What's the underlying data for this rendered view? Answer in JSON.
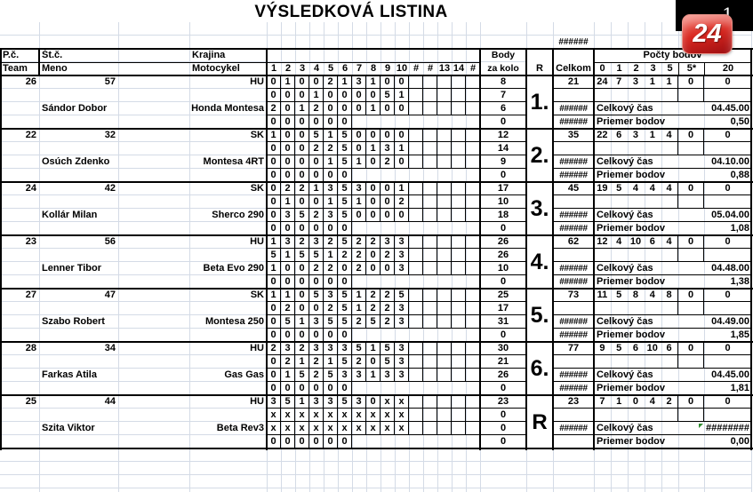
{
  "title": "VÝSLEDKOVÁ LISTINA",
  "page_number": "1",
  "logo_text": "24",
  "top_hash": "######",
  "header": {
    "pc": "P.č.",
    "team": "Team",
    "stc": "Št.č.",
    "meno": "Meno",
    "krajina": "Krajina",
    "motocykel": "Motocykel",
    "score_cols": [
      "1",
      "2",
      "3",
      "4",
      "5",
      "6",
      "7",
      "8",
      "9",
      "10",
      "#",
      "#",
      "13",
      "14",
      "#"
    ],
    "body_line1": "Body",
    "body_line2": "za kolo",
    "r": "R",
    "celkom": "Celkom",
    "pocty": "Počty bodov",
    "pocty_cols": [
      "0",
      "1",
      "2",
      "3",
      "5",
      "5*",
      "20"
    ]
  },
  "labels": {
    "cas": "Celkový čas",
    "priemer": "Priemer bodov"
  },
  "groups": [
    {
      "pc": "26",
      "stc": "57",
      "krajina": "HU",
      "meno": "Sándor Dobor",
      "motocykel": "Honda Montesa",
      "rank": "1.",
      "celkom": "21",
      "rows": [
        {
          "scores": [
            "0",
            "1",
            "0",
            "0",
            "2",
            "1",
            "3",
            "1",
            "0",
            "0"
          ],
          "body": "8"
        },
        {
          "scores": [
            "0",
            "0",
            "0",
            "1",
            "0",
            "0",
            "0",
            "0",
            "5",
            "1"
          ],
          "body": "7"
        },
        {
          "scores": [
            "2",
            "0",
            "1",
            "2",
            "0",
            "0",
            "0",
            "1",
            "0",
            "0"
          ],
          "body": "6"
        },
        {
          "scores": [
            "0",
            "0",
            "0",
            "0",
            "0",
            "0"
          ],
          "body": "0"
        }
      ],
      "hash3": "######",
      "hash4": "######",
      "counts": [
        "24",
        "7",
        "3",
        "1",
        "1"
      ],
      "count_5star": "0",
      "count_20": "0",
      "cas": "04.45.00",
      "cas_flag": false,
      "priemer": "0,50"
    },
    {
      "pc": "22",
      "stc": "32",
      "krajina": "SK",
      "meno": "Osúch Zdenko",
      "motocykel": "Montesa 4RT",
      "rank": "2.",
      "celkom": "35",
      "rows": [
        {
          "scores": [
            "1",
            "0",
            "0",
            "5",
            "1",
            "5",
            "0",
            "0",
            "0",
            "0"
          ],
          "body": "12"
        },
        {
          "scores": [
            "0",
            "0",
            "0",
            "2",
            "2",
            "5",
            "0",
            "1",
            "3",
            "1"
          ],
          "body": "14"
        },
        {
          "scores": [
            "0",
            "0",
            "0",
            "0",
            "1",
            "5",
            "1",
            "0",
            "2",
            "0"
          ],
          "body": "9"
        },
        {
          "scores": [
            "0",
            "0",
            "0",
            "0",
            "0",
            "0"
          ],
          "body": "0"
        }
      ],
      "hash3": "######",
      "hash4": "######",
      "counts": [
        "22",
        "6",
        "3",
        "1",
        "4"
      ],
      "count_5star": "0",
      "count_20": "0",
      "cas": "04.10.00",
      "cas_flag": false,
      "priemer": "0,88"
    },
    {
      "pc": "24",
      "stc": "42",
      "krajina": "SK",
      "meno": "Kollár Milan",
      "motocykel": "Sherco 290",
      "rank": "3.",
      "celkom": "45",
      "rows": [
        {
          "scores": [
            "0",
            "2",
            "2",
            "1",
            "3",
            "5",
            "3",
            "0",
            "0",
            "1"
          ],
          "body": "17"
        },
        {
          "scores": [
            "0",
            "1",
            "0",
            "0",
            "1",
            "5",
            "1",
            "0",
            "0",
            "2"
          ],
          "body": "10"
        },
        {
          "scores": [
            "0",
            "3",
            "5",
            "2",
            "3",
            "5",
            "0",
            "0",
            "0",
            "0"
          ],
          "body": "18"
        },
        {
          "scores": [
            "0",
            "0",
            "0",
            "0",
            "0",
            "0"
          ],
          "body": "0"
        }
      ],
      "hash3": "######",
      "hash4": "######",
      "counts": [
        "19",
        "5",
        "4",
        "4",
        "4"
      ],
      "count_5star": "0",
      "count_20": "0",
      "cas": "05.04.00",
      "cas_flag": false,
      "priemer": "1,08"
    },
    {
      "pc": "23",
      "stc": "56",
      "krajina": "HU",
      "meno": "Lenner Tibor",
      "motocykel": "Beta Evo 290",
      "rank": "4.",
      "celkom": "62",
      "rows": [
        {
          "scores": [
            "1",
            "3",
            "2",
            "3",
            "2",
            "5",
            "2",
            "2",
            "3",
            "3"
          ],
          "body": "26"
        },
        {
          "scores": [
            "5",
            "1",
            "5",
            "5",
            "1",
            "2",
            "2",
            "0",
            "2",
            "3"
          ],
          "body": "26"
        },
        {
          "scores": [
            "1",
            "0",
            "0",
            "2",
            "2",
            "0",
            "2",
            "0",
            "0",
            "3"
          ],
          "body": "10"
        },
        {
          "scores": [
            "0",
            "0",
            "0",
            "0",
            "0",
            "0"
          ],
          "body": "0"
        }
      ],
      "hash3": "######",
      "hash4": "######",
      "counts": [
        "12",
        "4",
        "10",
        "6",
        "4"
      ],
      "count_5star": "0",
      "count_20": "0",
      "cas": "04.48.00",
      "cas_flag": false,
      "priemer": "1,38"
    },
    {
      "pc": "27",
      "stc": "47",
      "krajina": "SK",
      "meno": "Szabo Robert",
      "motocykel": "Montesa 250",
      "rank": "5.",
      "celkom": "73",
      "rows": [
        {
          "scores": [
            "1",
            "1",
            "0",
            "5",
            "3",
            "5",
            "1",
            "2",
            "2",
            "5"
          ],
          "body": "25"
        },
        {
          "scores": [
            "0",
            "2",
            "0",
            "0",
            "2",
            "5",
            "1",
            "2",
            "2",
            "3"
          ],
          "body": "17"
        },
        {
          "scores": [
            "0",
            "5",
            "1",
            "3",
            "5",
            "5",
            "2",
            "5",
            "2",
            "3"
          ],
          "body": "31"
        },
        {
          "scores": [
            "0",
            "0",
            "0",
            "0",
            "0",
            "0"
          ],
          "body": "0"
        }
      ],
      "hash3": "######",
      "hash4": "######",
      "counts": [
        "11",
        "5",
        "8",
        "4",
        "8"
      ],
      "count_5star": "0",
      "count_20": "0",
      "cas": "04.49.00",
      "cas_flag": false,
      "priemer": "1,85"
    },
    {
      "pc": "28",
      "stc": "34",
      "krajina": "HU",
      "meno": "Farkas Atila",
      "motocykel": "Gas Gas",
      "rank": "6.",
      "celkom": "77",
      "rows": [
        {
          "scores": [
            "2",
            "3",
            "2",
            "3",
            "3",
            "3",
            "5",
            "1",
            "5",
            "3"
          ],
          "body": "30"
        },
        {
          "scores": [
            "0",
            "2",
            "1",
            "2",
            "1",
            "5",
            "2",
            "0",
            "5",
            "3"
          ],
          "body": "21"
        },
        {
          "scores": [
            "0",
            "1",
            "5",
            "2",
            "5",
            "3",
            "3",
            "1",
            "3",
            "3"
          ],
          "body": "26"
        },
        {
          "scores": [
            "0",
            "0",
            "0",
            "0",
            "0",
            "0"
          ],
          "body": "0"
        }
      ],
      "hash3": "######",
      "hash4": "######",
      "counts": [
        "9",
        "5",
        "6",
        "10",
        "6"
      ],
      "count_5star": "0",
      "count_20": "0",
      "cas": "04.45.00",
      "cas_flag": false,
      "priemer": "1,81"
    },
    {
      "pc": "25",
      "stc": "44",
      "krajina": "HU",
      "meno": "Szita Viktor",
      "motocykel": "Beta Rev3",
      "rank": "R",
      "celkom": "23",
      "rows": [
        {
          "scores": [
            "3",
            "5",
            "1",
            "3",
            "3",
            "5",
            "3",
            "0",
            "x",
            "x"
          ],
          "body": "23"
        },
        {
          "scores": [
            "x",
            "x",
            "x",
            "x",
            "x",
            "x",
            "x",
            "x",
            "x",
            "x"
          ],
          "body": "0"
        },
        {
          "scores": [
            "x",
            "x",
            "x",
            "x",
            "x",
            "x",
            "x",
            "x",
            "x",
            "x"
          ],
          "body": "0"
        },
        {
          "scores": [
            "0",
            "0",
            "0",
            "0",
            "0",
            "0"
          ],
          "body": "0"
        }
      ],
      "hash3": "######",
      "hash4": "",
      "counts": [
        "7",
        "1",
        "0",
        "4",
        "2"
      ],
      "count_5star": "0",
      "count_20": "0",
      "cas": "########",
      "cas_flag": true,
      "priemer": "0,00"
    }
  ]
}
